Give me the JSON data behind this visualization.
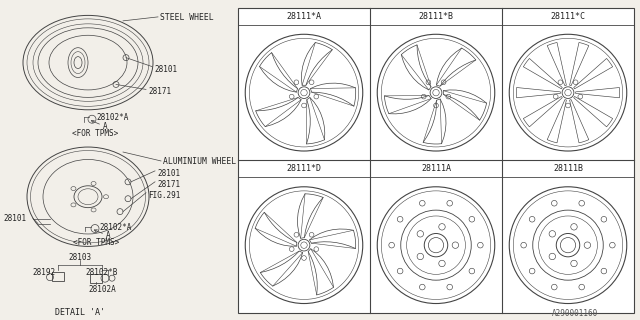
{
  "bg_color": "#f2efe9",
  "line_color": "#444444",
  "text_color": "#222222",
  "part_numbers_grid": [
    [
      "28111*A",
      "28111*B",
      "28111*C"
    ],
    [
      "28111*D",
      "28111A",
      "28111B"
    ]
  ],
  "footer_text": "A290001160",
  "labels": {
    "steel_wheel": "STEEL WHEEL",
    "aluminium_wheel": "ALUMINIUM WHEEL",
    "for_tpms": "<FOR TPMS>",
    "detail_a": "DETAIL 'A'",
    "p28101": "28101",
    "p28171": "28171",
    "p28102a": "28102*A",
    "arrow_a": "A",
    "fig291": "FIG.291",
    "p28101_al": "28101",
    "p28103": "28103",
    "p28192": "28192",
    "p28102b": "28102*B",
    "p28102a2": "28102A"
  }
}
